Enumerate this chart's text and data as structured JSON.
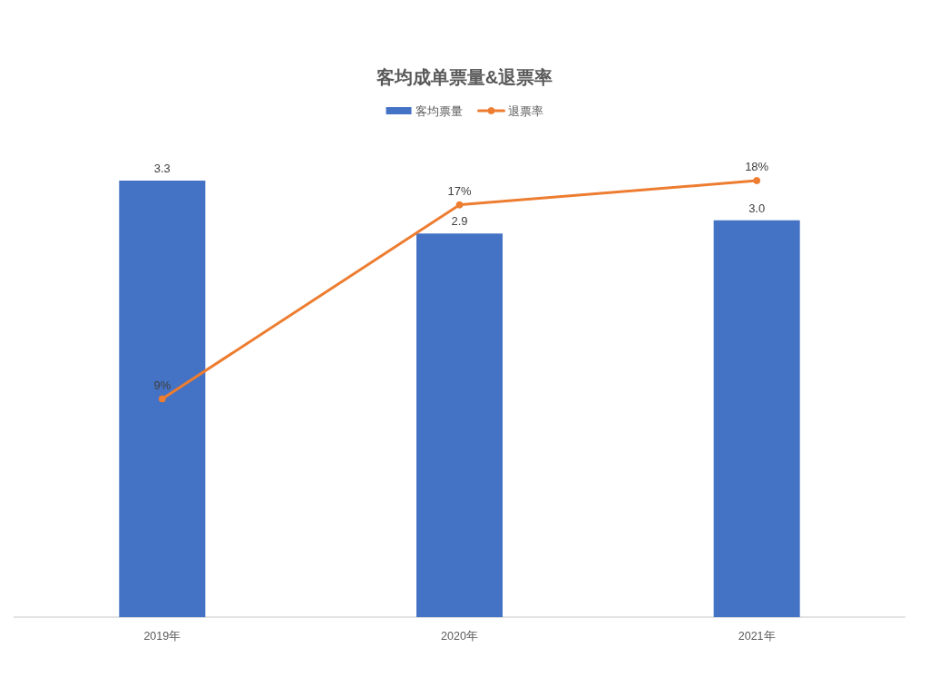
{
  "chart_data": {
    "type": "bar",
    "title": "客均成单票量&退票率",
    "categories": [
      "2019年",
      "2020年",
      "2021年"
    ],
    "series": [
      {
        "name": "客均票量",
        "color": "#4472c4",
        "values": [
          3.3,
          2.9,
          3.0
        ],
        "value_labels": [
          "3.3",
          "2.9",
          "3.0"
        ]
      },
      {
        "name": "退票率",
        "type": "line",
        "axis": "y2",
        "color": "#ed7d31",
        "values": [
          9,
          17,
          18
        ],
        "value_labels": [
          "9%",
          "17%",
          "18%"
        ],
        "marker": "circle"
      }
    ],
    "tick_labels": "x",
    "legend": "top"
  }
}
